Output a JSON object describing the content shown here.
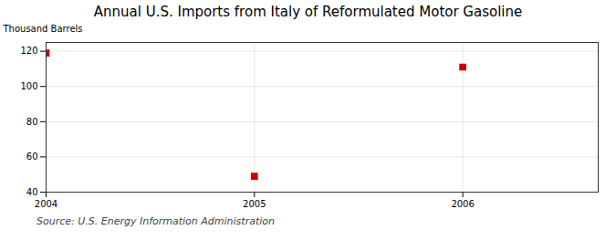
{
  "chart_data": {
    "type": "scatter",
    "title": "Annual U.S. Imports from Italy of Reformulated Motor Gasoline",
    "ylabel": "Thousand Barrels",
    "source": "Source: U.S. Energy Information Administration",
    "x": [
      2004,
      2005,
      2006
    ],
    "values": [
      119,
      49,
      111
    ],
    "xlim": [
      2004.0,
      2006.65
    ],
    "xticks": [
      2004,
      2005,
      2006
    ],
    "ylim": [
      40,
      125
    ],
    "yticks": [
      40,
      60,
      80,
      100,
      120
    ],
    "color": "#cc0000",
    "marker": "square",
    "grid": true
  }
}
